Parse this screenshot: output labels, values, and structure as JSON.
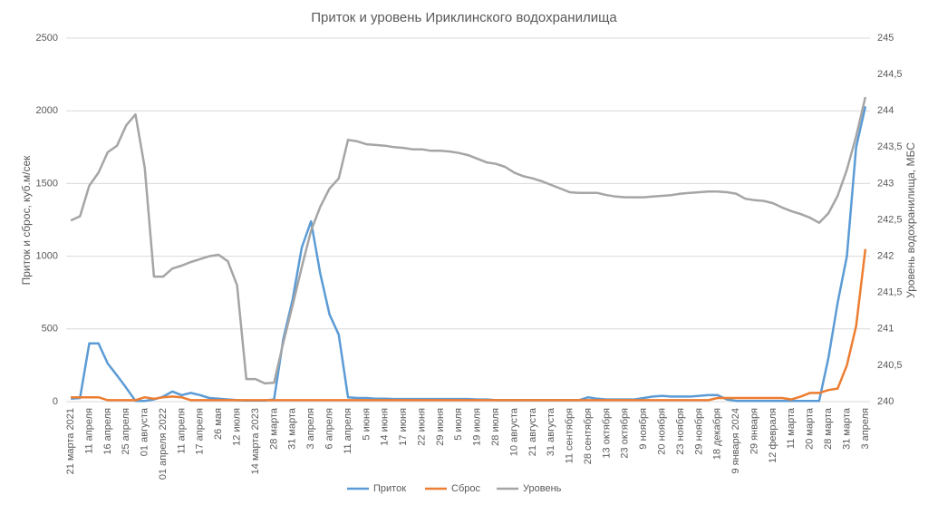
{
  "chart_data": {
    "type": "line",
    "title": "Приток и уровень Ириклинского водохранилища",
    "ylabel": "Приток и сброс, куб.м/сек",
    "y2label": "Уровень водохранилища, МБС",
    "categories": [
      "21 марта 2021",
      null,
      "11 апреля",
      null,
      "16 апреля",
      null,
      "25 апреля",
      null,
      "01 августа",
      null,
      "01 апреля 2022",
      null,
      "11 апреля",
      null,
      "17 апреля",
      null,
      "26 мая",
      null,
      "12 июля",
      null,
      "14 марта 2023",
      null,
      "28 марта",
      null,
      "31 марта",
      null,
      "3 апреля",
      null,
      "6 апреля",
      null,
      "11 апреля",
      null,
      "5 июня",
      null,
      "14 июня",
      null,
      "17 июня",
      null,
      "22 июня",
      null,
      "29 июня",
      null,
      "5 июля",
      null,
      "19 июля",
      null,
      "28 июля",
      null,
      "10 августа",
      null,
      "21 августа",
      null,
      "31 августа",
      null,
      "11 сентября",
      null,
      "28 сентября",
      null,
      "13 октября",
      null,
      "23 октября",
      null,
      "9 ноября",
      null,
      "20 ноября",
      null,
      "23 ноября",
      null,
      "29 ноября",
      null,
      "18 декабря",
      null,
      "9 января 2024",
      null,
      "29 января",
      null,
      "12 февраля",
      null,
      "11 марта",
      null,
      "20 марта",
      null,
      "28 марта",
      null,
      "31 марта",
      null,
      "3 апреля"
    ],
    "series": [
      {
        "name": "Приток",
        "color": "#5b9bd5",
        "values": [
          20,
          25,
          400,
          400,
          262,
          180,
          95,
          5,
          5,
          15,
          35,
          70,
          45,
          60,
          45,
          25,
          20,
          15,
          10,
          8,
          8,
          8,
          15,
          430,
          700,
          1060,
          1240,
          880,
          600,
          460,
          30,
          25,
          25,
          20,
          20,
          18,
          18,
          18,
          18,
          18,
          18,
          18,
          18,
          18,
          15,
          15,
          10,
          10,
          10,
          10,
          10,
          10,
          10,
          10,
          10,
          10,
          30,
          20,
          15,
          15,
          15,
          15,
          25,
          35,
          40,
          35,
          35,
          35,
          40,
          45,
          45,
          15,
          5,
          5,
          5,
          5,
          5,
          5,
          5,
          5,
          5,
          5,
          300,
          680,
          1000,
          1750,
          2030
        ]
      },
      {
        "name": "Сброс",
        "color": "#ed7d31",
        "values": [
          30,
          30,
          30,
          30,
          10,
          10,
          10,
          10,
          30,
          20,
          30,
          35,
          30,
          10,
          10,
          10,
          10,
          10,
          10,
          10,
          10,
          10,
          10,
          10,
          10,
          10,
          10,
          10,
          10,
          10,
          10,
          10,
          10,
          10,
          10,
          10,
          10,
          10,
          10,
          10,
          10,
          10,
          10,
          10,
          10,
          10,
          10,
          10,
          10,
          10,
          10,
          10,
          10,
          10,
          10,
          10,
          10,
          10,
          10,
          10,
          10,
          10,
          10,
          10,
          10,
          10,
          10,
          10,
          10,
          10,
          25,
          25,
          25,
          25,
          25,
          25,
          25,
          25,
          15,
          35,
          60,
          60,
          80,
          90,
          250,
          520,
          1050
        ]
      },
      {
        "name": "Уровень",
        "color": "#a5a5a5",
        "axis": "y2",
        "values": [
          242.49,
          242.55,
          242.97,
          243.15,
          243.43,
          243.52,
          243.8,
          243.95,
          243.22,
          241.72,
          241.72,
          241.83,
          241.87,
          241.92,
          241.96,
          242.0,
          242.02,
          241.93,
          241.6,
          240.31,
          240.31,
          240.25,
          240.26,
          240.81,
          241.32,
          241.85,
          242.35,
          242.68,
          242.93,
          243.07,
          243.6,
          243.58,
          243.54,
          243.53,
          243.52,
          243.5,
          243.49,
          243.47,
          243.47,
          243.45,
          243.45,
          243.44,
          243.42,
          243.39,
          243.34,
          243.29,
          243.27,
          243.23,
          243.15,
          243.1,
          243.07,
          243.03,
          242.98,
          242.93,
          242.88,
          242.87,
          242.87,
          242.87,
          242.84,
          242.82,
          242.81,
          242.81,
          242.81,
          242.82,
          242.83,
          242.84,
          242.86,
          242.87,
          242.88,
          242.89,
          242.89,
          242.88,
          242.86,
          242.79,
          242.77,
          242.76,
          242.73,
          242.67,
          242.62,
          242.58,
          242.53,
          242.46,
          242.59,
          242.83,
          243.19,
          243.65,
          244.19
        ]
      }
    ],
    "ylim": [
      0,
      2500
    ],
    "yticks": [
      0,
      500,
      1000,
      1500,
      2000,
      2500
    ],
    "y2lim": [
      240,
      245
    ],
    "y2ticks": [
      240,
      {
        "value": 240.5,
        "label": "240,5"
      },
      241,
      {
        "value": 241.5,
        "label": "241,5"
      },
      242,
      {
        "value": 242.5,
        "label": "242,5"
      },
      243,
      {
        "value": 243.5,
        "label": "243,5"
      },
      244,
      {
        "value": 244.5,
        "label": "244,5"
      },
      245
    ],
    "grid": true,
    "legend": "bottom"
  }
}
